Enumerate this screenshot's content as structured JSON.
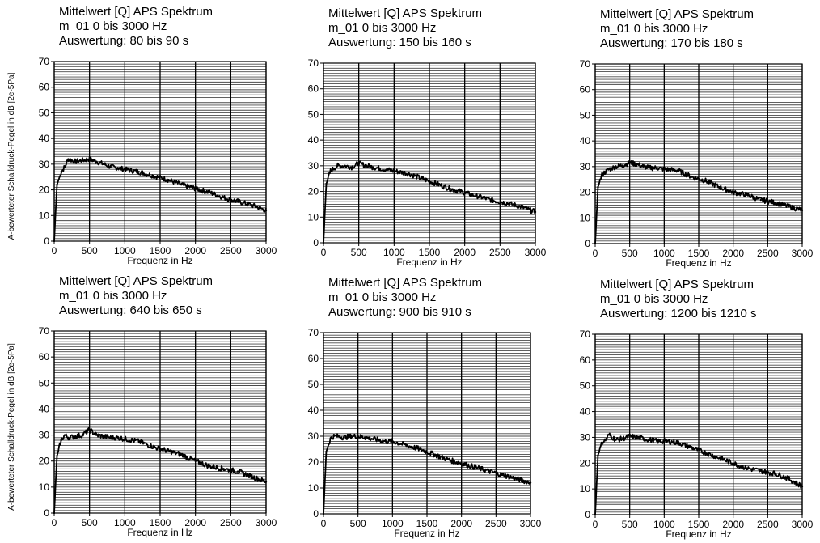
{
  "ylabel": "A-bewerteter Schalldruck-Pegel in dB [2e-5Pa]",
  "chart_data": [
    {
      "type": "line",
      "title": [
        "Mittelwert [Q] APS Spektrum",
        "m_01 0 bis 3000 Hz",
        "Auswertung: 80 bis 90 s"
      ],
      "xlabel": "Frequenz in Hz",
      "ylabel": "A-bewerteter Schalldruck-Pegel in dB [2e-5Pa]",
      "xlim": [
        0,
        3000
      ],
      "ylim": [
        0,
        70
      ],
      "xticks": [
        "0",
        "500",
        "1000",
        "1500",
        "2000",
        "2500",
        "3000"
      ],
      "yticks": [
        "0",
        "10",
        "20",
        "30",
        "40",
        "50",
        "60",
        "70"
      ],
      "grid": true,
      "series": [
        {
          "x": [
            0,
            40,
            100,
            150,
            200,
            300,
            400,
            500,
            600,
            700,
            800,
            900,
            1000,
            1200,
            1400,
            1600,
            1800,
            2000,
            2200,
            2400,
            2600,
            2800,
            3000
          ],
          "values": [
            0,
            22,
            27,
            29,
            32,
            31,
            31.5,
            32,
            31,
            30,
            29,
            28.5,
            28,
            27,
            25.5,
            24,
            22,
            20.5,
            19,
            17,
            15.5,
            14,
            12
          ]
        }
      ]
    },
    {
      "type": "line",
      "title": [
        "Mittelwert [Q] APS Spektrum",
        "m_01 0 bis 3000 Hz",
        "Auswertung: 150 bis 160 s"
      ],
      "xlabel": "Frequenz in Hz",
      "ylabel": "",
      "xlim": [
        0,
        3000
      ],
      "ylim": [
        0,
        70
      ],
      "xticks": [
        "0",
        "500",
        "1000",
        "1500",
        "2000",
        "2500",
        "3000"
      ],
      "yticks": [
        "0",
        "10",
        "20",
        "30",
        "40",
        "50",
        "60",
        "70"
      ],
      "grid": true,
      "series": [
        {
          "x": [
            0,
            40,
            100,
            150,
            200,
            300,
            400,
            500,
            600,
            700,
            800,
            900,
            1000,
            1200,
            1400,
            1600,
            1800,
            2000,
            2200,
            2400,
            2600,
            2800,
            3000
          ],
          "values": [
            0,
            23,
            28,
            29,
            30,
            30,
            29.5,
            31,
            30,
            29.5,
            29,
            28.5,
            28,
            27,
            25,
            23,
            21,
            19.5,
            18,
            16.5,
            15.5,
            14,
            12
          ]
        }
      ]
    },
    {
      "type": "line",
      "title": [
        "Mittelwert [Q] APS Spektrum",
        "m_01 0 bis 3000 Hz",
        "Auswertung: 170 bis 180 s"
      ],
      "xlabel": "Frequenz in Hz",
      "ylabel": "",
      "xlim": [
        0,
        3000
      ],
      "ylim": [
        0,
        70
      ],
      "xticks": [
        "0",
        "500",
        "1000",
        "1500",
        "2000",
        "2500",
        "3000"
      ],
      "yticks": [
        "0",
        "10",
        "20",
        "30",
        "40",
        "50",
        "60",
        "70"
      ],
      "grid": true,
      "series": [
        {
          "x": [
            0,
            40,
            100,
            150,
            200,
            300,
            400,
            500,
            600,
            700,
            800,
            900,
            1000,
            1200,
            1400,
            1600,
            1800,
            2000,
            2200,
            2400,
            2600,
            2800,
            3000
          ],
          "values": [
            0,
            22,
            27,
            28,
            29,
            30,
            30.5,
            31.5,
            31,
            30,
            29.5,
            29.5,
            29,
            28.5,
            26,
            24.5,
            22,
            20,
            19,
            17,
            16,
            14.5,
            13
          ]
        }
      ]
    },
    {
      "type": "line",
      "title": [
        "Mittelwert [Q] APS Spektrum",
        "m_01 0 bis 3000 Hz",
        "Auswertung: 640 bis 650 s"
      ],
      "xlabel": "Frequenz in Hz",
      "ylabel": "A-bewerteter Schalldruck-Pegel in dB [2e-5Pa]",
      "xlim": [
        0,
        3000
      ],
      "ylim": [
        0,
        70
      ],
      "xticks": [
        "0",
        "500",
        "1000",
        "1500",
        "2000",
        "2500",
        "3000"
      ],
      "yticks": [
        "0",
        "10",
        "20",
        "30",
        "40",
        "50",
        "60",
        "70"
      ],
      "grid": true,
      "series": [
        {
          "x": [
            0,
            40,
            100,
            150,
            200,
            300,
            400,
            500,
            600,
            700,
            800,
            900,
            1000,
            1200,
            1400,
            1600,
            1800,
            2000,
            2200,
            2400,
            2600,
            2800,
            3000
          ],
          "values": [
            0,
            22,
            28,
            30,
            29,
            29.5,
            30,
            32,
            30,
            29.5,
            29,
            29,
            28.5,
            27.5,
            25.5,
            24,
            22.5,
            20,
            18,
            17,
            16,
            14,
            12
          ]
        }
      ]
    },
    {
      "type": "line",
      "title": [
        "Mittelwert [Q] APS Spektrum",
        "m_01 0 bis 3000 Hz",
        "Auswertung: 900 bis 910 s"
      ],
      "xlabel": "Frequenz in Hz",
      "ylabel": "",
      "xlim": [
        0,
        3000
      ],
      "ylim": [
        0,
        70
      ],
      "xticks": [
        "0",
        "500",
        "1000",
        "1500",
        "2000",
        "2500",
        "3000"
      ],
      "yticks": [
        "0",
        "10",
        "20",
        "30",
        "40",
        "50",
        "60",
        "70"
      ],
      "grid": true,
      "series": [
        {
          "x": [
            0,
            40,
            100,
            150,
            200,
            300,
            400,
            500,
            600,
            700,
            800,
            900,
            1000,
            1200,
            1400,
            1600,
            1800,
            2000,
            2200,
            2400,
            2600,
            2800,
            3000
          ],
          "values": [
            0,
            24,
            29,
            30,
            30,
            29.5,
            30,
            30,
            29.5,
            29,
            28.5,
            28,
            28,
            26.5,
            25,
            23,
            21,
            19.5,
            18,
            16.5,
            15,
            13.5,
            12
          ]
        }
      ]
    },
    {
      "type": "line",
      "title": [
        "Mittelwert [Q] APS Spektrum",
        "m_01 0 bis 3000 Hz",
        "Auswertung: 1200 bis 1210 s"
      ],
      "xlabel": "Frequenz in Hz",
      "ylabel": "",
      "xlim": [
        0,
        3000
      ],
      "ylim": [
        0,
        70
      ],
      "xticks": [
        "0",
        "500",
        "1000",
        "1500",
        "2000",
        "2500",
        "3000"
      ],
      "yticks": [
        "0",
        "10",
        "20",
        "30",
        "40",
        "50",
        "60",
        "70"
      ],
      "grid": true,
      "series": [
        {
          "x": [
            0,
            40,
            100,
            150,
            200,
            300,
            400,
            500,
            600,
            700,
            800,
            900,
            1000,
            1200,
            1400,
            1600,
            1800,
            2000,
            2200,
            2400,
            2600,
            2800,
            3000
          ],
          "values": [
            0,
            23,
            28,
            29,
            31,
            29,
            29.5,
            30.5,
            30,
            29.5,
            29,
            28.5,
            28.5,
            28,
            26,
            24,
            22,
            20,
            18,
            17,
            16,
            14,
            11
          ]
        }
      ]
    }
  ]
}
